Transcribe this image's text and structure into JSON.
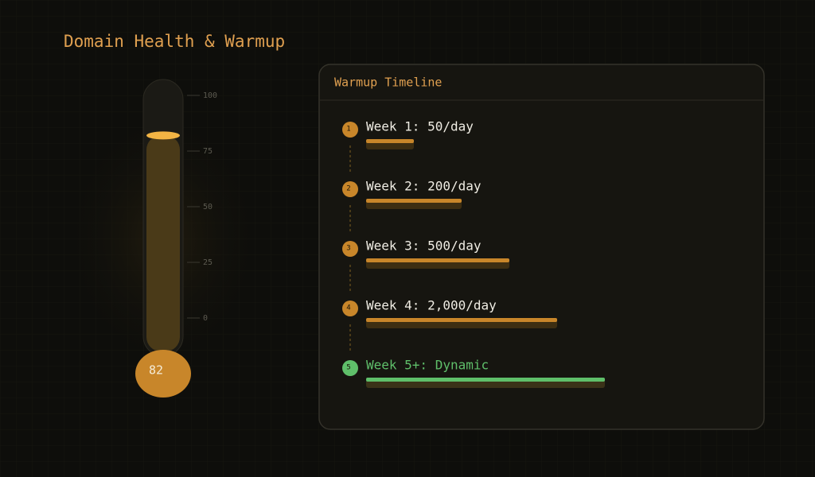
{
  "header": {
    "title": "Domain Health & Warmup"
  },
  "gauge": {
    "value": 82,
    "ticks": [
      0,
      25,
      50,
      75,
      100
    ],
    "fill_color": "#c8862a"
  },
  "timeline": {
    "title": "Warmup Timeline",
    "steps": [
      {
        "number": 1,
        "label": "Week 1: 50/day",
        "color": "#c8862a"
      },
      {
        "number": 2,
        "label": "Week 2: 200/day",
        "color": "#c8862a"
      },
      {
        "number": 3,
        "label": "Week 3: 500/day",
        "color": "#c8862a"
      },
      {
        "number": 4,
        "label": "Week 4: 2,000/day",
        "color": "#c8862a"
      },
      {
        "number": 5,
        "label": "Week 5+: Dynamic",
        "color": "#5fbf6a"
      }
    ]
  }
}
